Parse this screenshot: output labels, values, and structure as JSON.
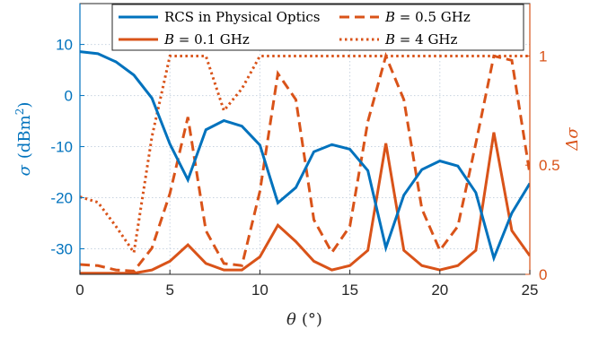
{
  "chart_data": {
    "type": "line",
    "title": "",
    "xlabel": {
      "symbol": "θ",
      "unit": "(°)"
    },
    "ylabel_left": {
      "symbol": "σ",
      "unit": "(dBm",
      "sup": "2",
      "close": ")"
    },
    "ylabel_right": {
      "symbol": "Δσ"
    },
    "xlim": [
      0,
      25
    ],
    "ylim_left": [
      -35,
      18
    ],
    "ylim_right": [
      0,
      1.24
    ],
    "xticks": [
      0,
      5,
      10,
      15,
      20,
      25
    ],
    "yticks_left": [
      10,
      0,
      -10,
      -20,
      -30
    ],
    "yticks_right": [
      0,
      0.5,
      1
    ],
    "grid": true,
    "legend_position": "top",
    "colors": {
      "left_axis": "#0072BD",
      "right_axis": "#D95319",
      "grid": "#c8d3e0"
    },
    "x": [
      0,
      1,
      2,
      3,
      4,
      5,
      6,
      7,
      8,
      9,
      10,
      11,
      12,
      13,
      14,
      15,
      16,
      17,
      18,
      19,
      20,
      21,
      22,
      23,
      24,
      25
    ],
    "series": [
      {
        "name": "RCS in Physical Optics",
        "axis": "left",
        "color": "#0072BD",
        "dash": "solid",
        "values": [
          8.6,
          8.2,
          6.6,
          4.0,
          -0.5,
          -9.5,
          -16.5,
          -6.7,
          -4.9,
          -6.0,
          -9.7,
          -21.0,
          -18.0,
          -11.0,
          -9.6,
          -10.5,
          -14.7,
          -29.8,
          -19.5,
          -14.5,
          -12.8,
          -13.8,
          -19.0,
          -31.8,
          -23.0,
          -17.2
        ]
      },
      {
        "name": "B = 0.1 GHz",
        "label_var": "B",
        "label_rest": " = 0.1 GHz",
        "axis": "right",
        "color": "#D95319",
        "dash": "solid",
        "values": [
          0.005,
          0.005,
          0.005,
          0.005,
          0.02,
          0.06,
          0.135,
          0.05,
          0.02,
          0.02,
          0.08,
          0.225,
          0.15,
          0.06,
          0.02,
          0.04,
          0.11,
          0.6,
          0.11,
          0.04,
          0.02,
          0.04,
          0.11,
          0.65,
          0.2,
          0.085
        ]
      },
      {
        "name": "B = 0.5 GHz",
        "label_var": "B",
        "label_rest": " = 0.5 GHz",
        "axis": "right",
        "color": "#D95319",
        "dash": "dashed",
        "values": [
          0.045,
          0.04,
          0.02,
          0.015,
          0.12,
          0.37,
          0.72,
          0.2,
          0.05,
          0.04,
          0.38,
          0.92,
          0.8,
          0.25,
          0.1,
          0.22,
          0.7,
          1.0,
          0.8,
          0.3,
          0.11,
          0.22,
          0.6,
          1.0,
          0.98,
          0.46
        ]
      },
      {
        "name": "B = 4 GHz",
        "label_var": "B",
        "label_rest": " = 4 GHz",
        "axis": "right",
        "color": "#D95319",
        "dash": "dotted",
        "values": [
          0.355,
          0.33,
          0.22,
          0.1,
          0.63,
          1.0,
          1.0,
          1.0,
          0.75,
          0.85,
          1.0,
          1.0,
          1.0,
          1.0,
          1.0,
          1.0,
          1.0,
          1.0,
          1.0,
          1.0,
          1.0,
          1.0,
          1.0,
          1.0,
          1.0,
          1.0
        ]
      }
    ]
  }
}
